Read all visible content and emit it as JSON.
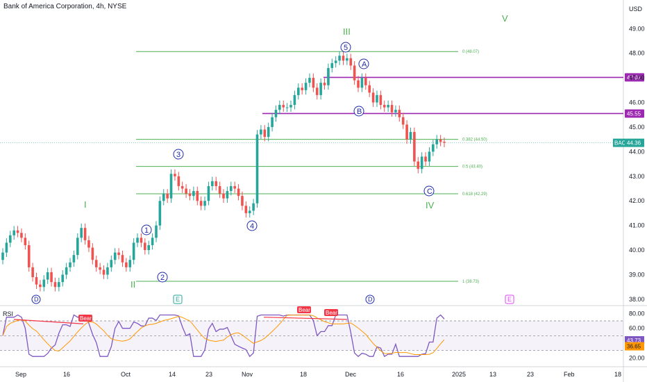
{
  "header": {
    "title": "Bank of America Corporation, 4h, NYSE",
    "currency": "USD"
  },
  "chart_data": {
    "type": "candlestick",
    "symbol": "BAC",
    "last_price": "44.36",
    "y_ticks": [
      "49.00",
      "48.00",
      "47.00",
      "46.00",
      "45.00",
      "44.00",
      "43.00",
      "42.00",
      "41.00",
      "40.00",
      "39.00",
      "38.00"
    ],
    "ylim": [
      37.8,
      49.6
    ],
    "x_ticks": [
      "Sep",
      "16",
      "Oct",
      "14",
      "23",
      "Nov",
      "18",
      "Dec",
      "16",
      "2025",
      "13",
      "23",
      "Feb",
      "18"
    ],
    "horizontal_levels": [
      {
        "price": 47.02,
        "label": "47.02",
        "color": "#9c27b0"
      },
      {
        "price": 45.55,
        "label": "45.55",
        "color": "#9c27b0"
      }
    ],
    "fib_levels": [
      {
        "price": 48.07,
        "label": "0 (48.07)"
      },
      {
        "price": 44.5,
        "label": "0.382 (44.50)"
      },
      {
        "price": 43.4,
        "label": "0.5 (43.40)"
      },
      {
        "price": 42.29,
        "label": "0.618 (42.29)"
      },
      {
        "price": 38.73,
        "label": "1 (38.73)"
      }
    ],
    "wave_labels_major": [
      "I",
      "II",
      "III",
      "IV",
      "V"
    ],
    "wave_labels_minor": [
      "1",
      "2",
      "3",
      "4",
      "5",
      "A",
      "B",
      "C"
    ],
    "event_markers": [
      "D",
      "E",
      "D",
      "E"
    ],
    "closes": [
      39.9,
      40.3,
      40.6,
      40.8,
      40.7,
      40.5,
      40.2,
      39.3,
      38.9,
      38.6,
      38.5,
      38.8,
      39.1,
      38.7,
      38.5,
      38.7,
      39.0,
      39.3,
      39.5,
      39.8,
      40.5,
      40.9,
      40.4,
      40.1,
      39.6,
      39.3,
      39.2,
      39.0,
      39.3,
      39.6,
      39.9,
      39.8,
      39.5,
      39.3,
      39.6,
      40.3,
      40.5,
      40.3,
      40.0,
      40.2,
      40.5,
      41.0,
      42.0,
      42.3,
      42.1,
      43.1,
      43.0,
      42.6,
      42.5,
      42.3,
      42.2,
      42.4,
      42.0,
      41.8,
      42.0,
      42.6,
      42.8,
      42.6,
      42.3,
      42.1,
      42.4,
      42.6,
      42.5,
      42.2,
      41.8,
      41.5,
      41.6,
      41.9,
      44.7,
      44.9,
      44.6,
      45.0,
      45.4,
      45.7,
      45.9,
      45.8,
      45.8,
      45.9,
      46.3,
      46.6,
      46.5,
      46.8,
      47.0,
      46.6,
      46.3,
      46.8,
      46.7,
      47.4,
      47.6,
      47.7,
      47.9,
      47.7,
      47.8,
      47.5,
      46.9,
      46.6,
      47.0,
      46.7,
      46.4,
      46.0,
      46.3,
      45.9,
      45.8,
      45.9,
      45.6,
      45.7,
      45.4,
      45.1,
      44.5,
      44.8,
      43.6,
      43.3,
      43.8,
      43.6,
      44.0,
      44.3,
      44.5,
      44.4,
      44.36
    ],
    "rsi": {
      "label": "RSI",
      "value": "43.73",
      "ma_value": "36.65",
      "ticks": [
        "80.00",
        "60.00",
        "40.00",
        "20.00"
      ],
      "divergence_tags": [
        "Bear",
        "Bear",
        "Bear"
      ]
    }
  },
  "colors": {
    "up": "#26a69a",
    "down": "#ef5350",
    "fib": "#4caf50",
    "level": "#9c27b0",
    "rsi": "#7e57c2",
    "rsi_ma": "#ff9800",
    "tag": "#f23645",
    "marker": "#1e2aa8"
  }
}
